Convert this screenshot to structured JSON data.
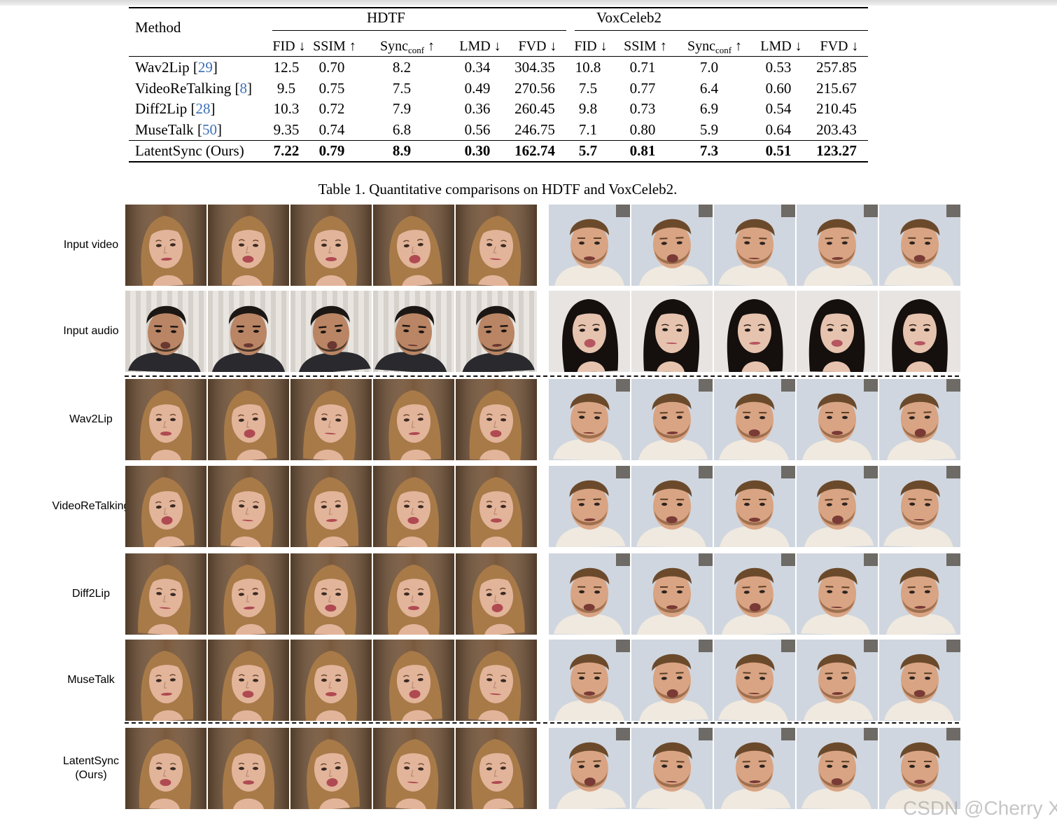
{
  "table": {
    "method_header": "Method",
    "group_left": "HDTF",
    "group_right": "VoxCeleb2",
    "columns": [
      {
        "base": "FID",
        "sub": "",
        "arrow": "↓"
      },
      {
        "base": "SSIM",
        "sub": "",
        "arrow": "↑"
      },
      {
        "base": "Sync",
        "sub": "conf",
        "arrow": "↑"
      },
      {
        "base": "LMD",
        "sub": "",
        "arrow": "↓"
      },
      {
        "base": "FVD",
        "sub": "",
        "arrow": "↓"
      },
      {
        "base": "FID",
        "sub": "",
        "arrow": "↓"
      },
      {
        "base": "SSIM",
        "sub": "",
        "arrow": "↑"
      },
      {
        "base": "Sync",
        "sub": "conf",
        "arrow": "↑"
      },
      {
        "base": "LMD",
        "sub": "",
        "arrow": "↓"
      },
      {
        "base": "FVD",
        "sub": "",
        "arrow": "↓"
      }
    ],
    "rows": [
      {
        "name": "Wav2Lip",
        "cite": "29",
        "values": [
          "12.5",
          "0.70",
          "8.2",
          "0.34",
          "304.35",
          "10.8",
          "0.71",
          "7.0",
          "0.53",
          "257.85"
        ],
        "bold": false
      },
      {
        "name": "VideoReTalking",
        "cite": "8",
        "values": [
          "9.5",
          "0.75",
          "7.5",
          "0.49",
          "270.56",
          "7.5",
          "0.77",
          "6.4",
          "0.60",
          "215.67"
        ],
        "bold": false
      },
      {
        "name": "Diff2Lip",
        "cite": "28",
        "values": [
          "10.3",
          "0.72",
          "7.9",
          "0.36",
          "260.45",
          "9.8",
          "0.73",
          "6.9",
          "0.54",
          "210.45"
        ],
        "bold": false
      },
      {
        "name": "MuseTalk",
        "cite": "50",
        "values": [
          "9.35",
          "0.74",
          "6.8",
          "0.56",
          "246.75",
          "7.1",
          "0.80",
          "5.9",
          "0.64",
          "203.43"
        ],
        "bold": false
      },
      {
        "name": "LatentSync (Ours)",
        "cite": "",
        "values": [
          "7.22",
          "0.79",
          "8.9",
          "0.30",
          "162.74",
          "5.7",
          "0.81",
          "7.3",
          "0.51",
          "123.27"
        ],
        "bold": true
      }
    ]
  },
  "caption": "Table 1. Quantitative comparisons on HDTF and VoxCeleb2.",
  "grid": {
    "rows": [
      {
        "label": "Input video",
        "left_subject": "woman-long-hair",
        "right_subject": "man-beard"
      },
      {
        "label": "Input audio",
        "left_subject": "man-dark-hair",
        "right_subject": "woman-dark-hair"
      },
      {
        "label": "Wav2Lip",
        "left_subject": "woman-long-hair",
        "right_subject": "man-beard"
      },
      {
        "label": "VideoReTalking",
        "left_subject": "woman-long-hair",
        "right_subject": "man-beard"
      },
      {
        "label": "Diff2Lip",
        "left_subject": "woman-long-hair",
        "right_subject": "man-beard"
      },
      {
        "label": "MuseTalk",
        "left_subject": "woman-long-hair",
        "right_subject": "man-beard"
      },
      {
        "label": "LatentSync\n(Ours)",
        "left_subject": "woman-long-hair",
        "right_subject": "man-beard"
      }
    ],
    "frames_per_side": 5
  },
  "watermark": "CSDN @Cherry Xie",
  "colors": {
    "cite": "#3b6fb6",
    "woman_bg": "#7a5a3e",
    "woman_hair": "#a87a48",
    "woman_skin": "#e2b49a",
    "man_bg": "#cfd6df",
    "man_skin": "#d9a483",
    "man_hair": "#6b4a2c",
    "man2_bg": "#e9e6e2",
    "man2_hair": "#1c1714",
    "man2_skin": "#b98564",
    "woman2_bg": "#e8e4e1",
    "woman2_hair": "#15100e",
    "woman2_skin": "#e6c3ae"
  }
}
